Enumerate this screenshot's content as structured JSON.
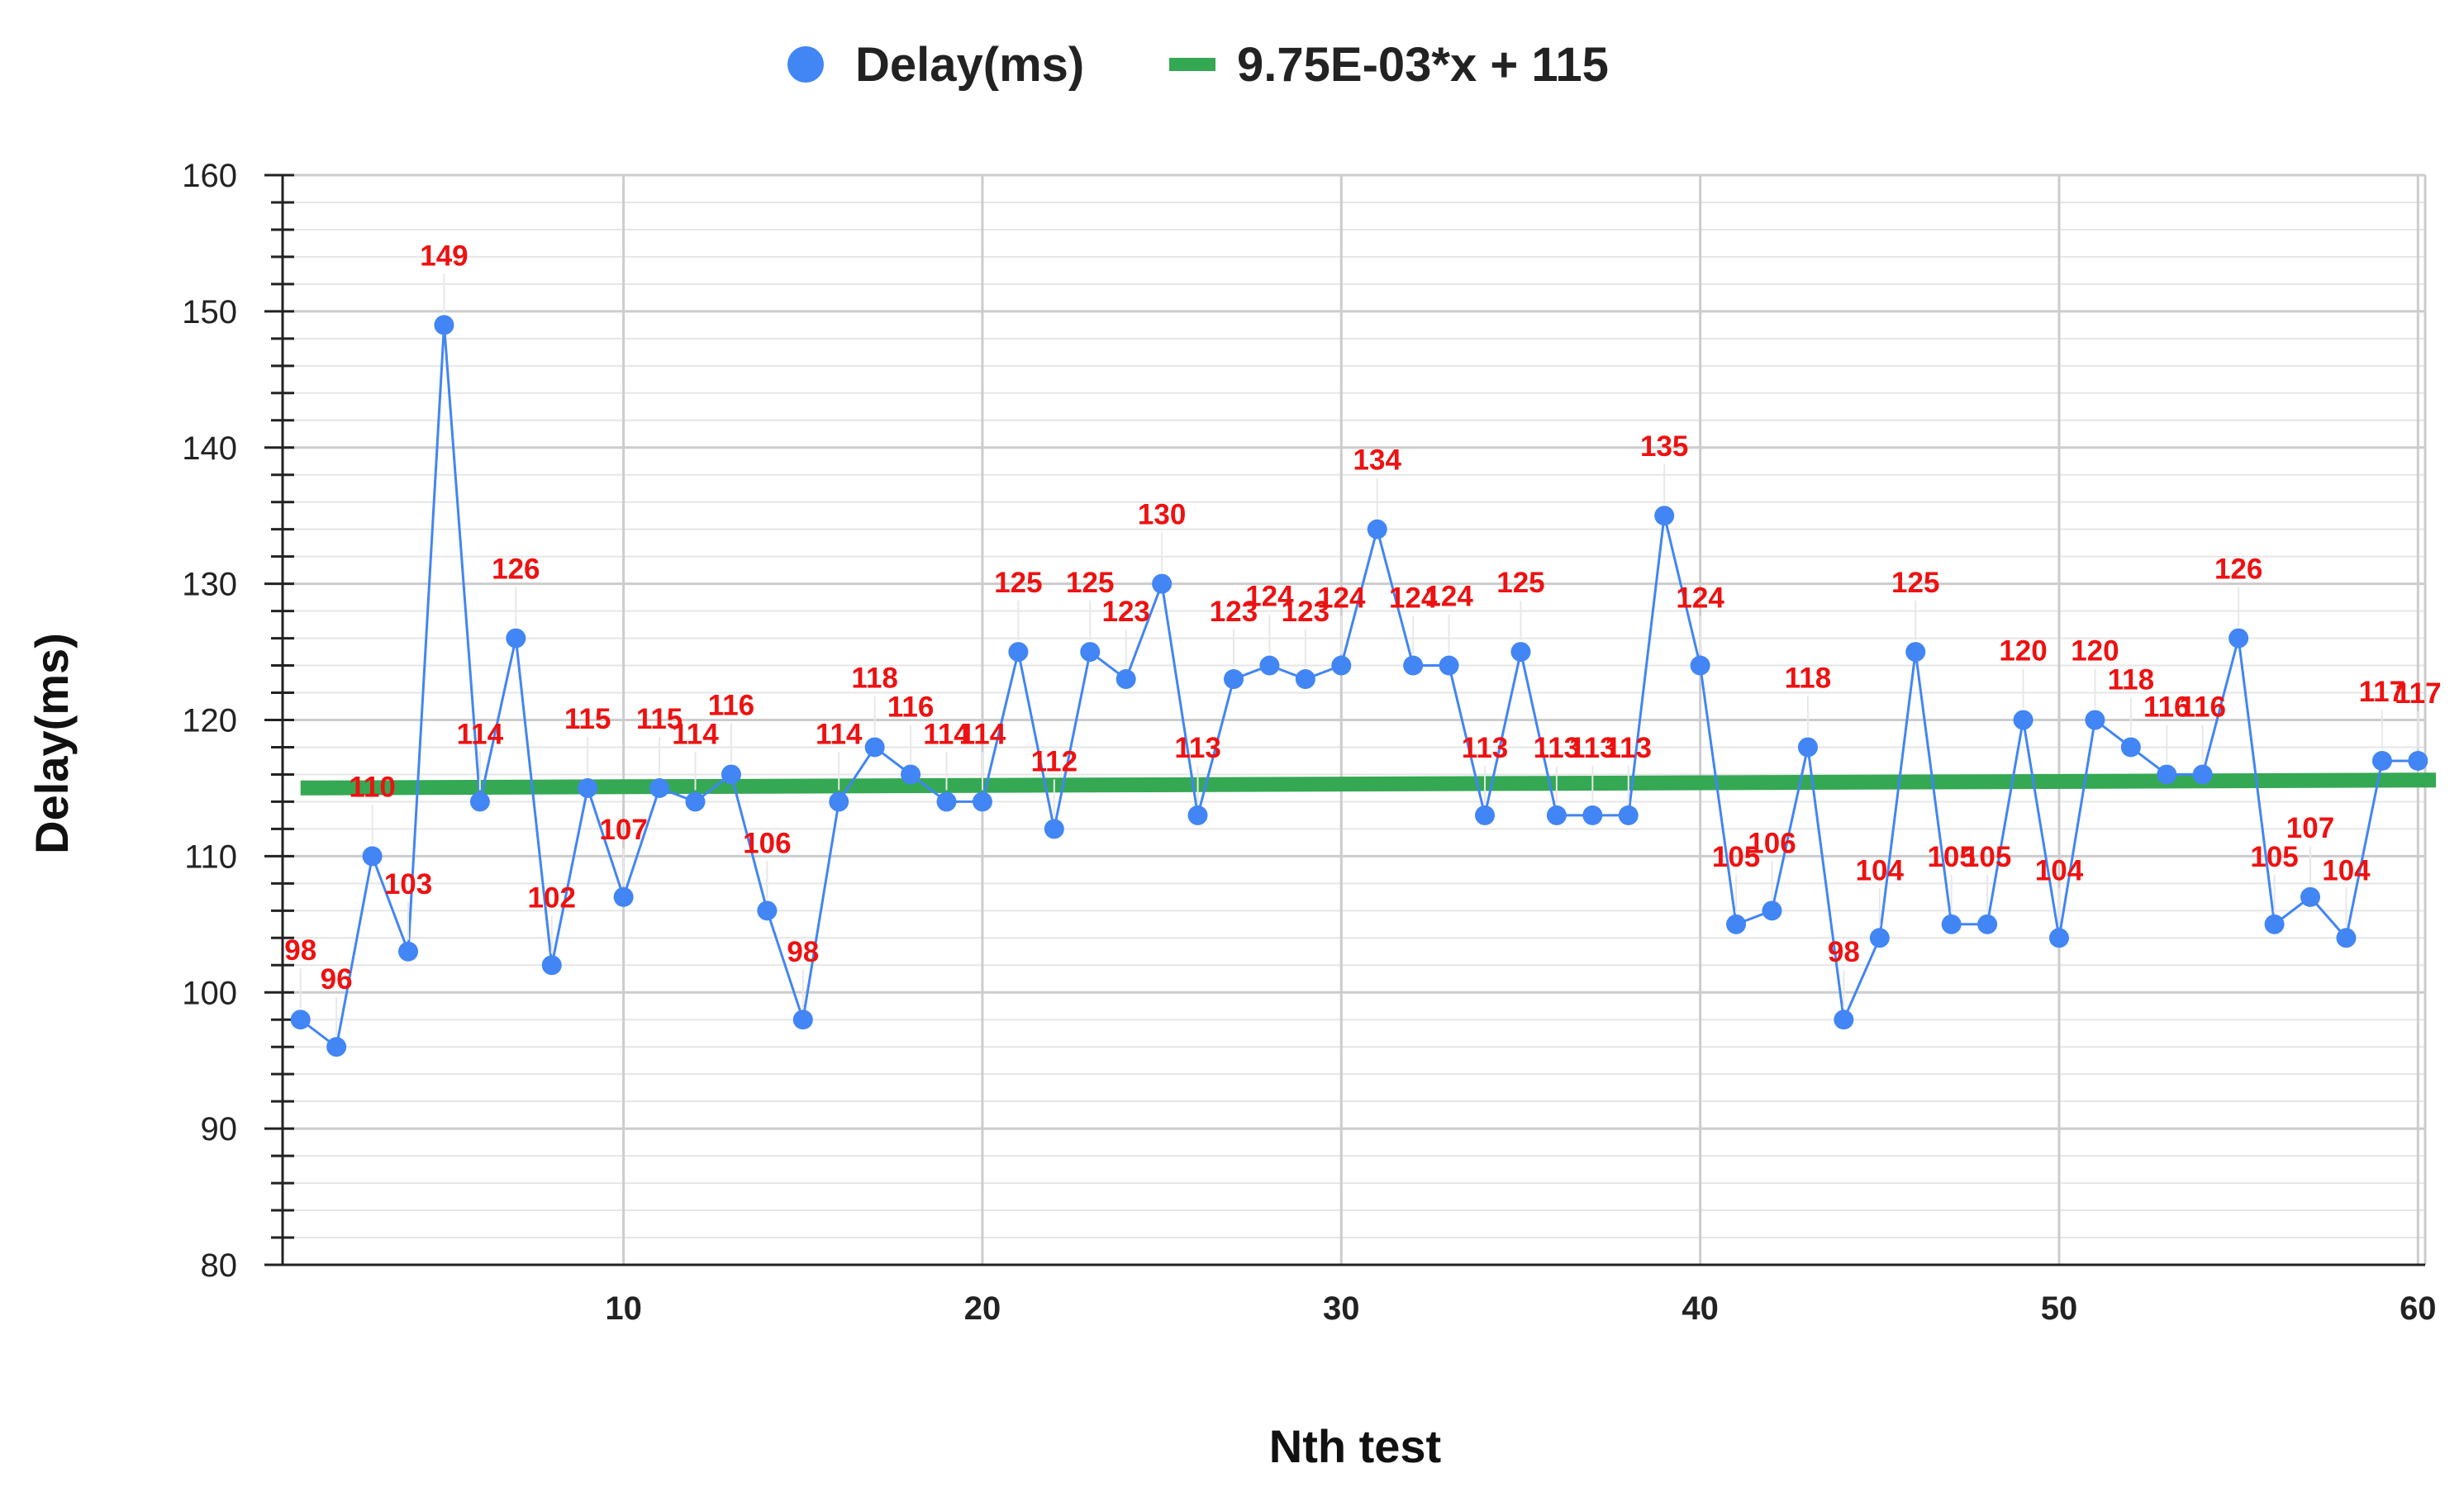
{
  "chart_data": {
    "type": "line",
    "title": "",
    "xlabel": "Nth test",
    "ylabel": "Delay(ms)",
    "xlim": [
      0.5,
      60.2
    ],
    "ylim": [
      80,
      160
    ],
    "x_ticks": [
      10,
      20,
      30,
      40,
      50,
      60
    ],
    "y_ticks": [
      80,
      90,
      100,
      110,
      120,
      130,
      140,
      150,
      160
    ],
    "grid": true,
    "legend_position": "top-center",
    "series": [
      {
        "name": "Delay(ms)",
        "color": "#4285f4",
        "label_color": "#ee1111",
        "x": [
          1,
          2,
          3,
          4,
          5,
          6,
          7,
          8,
          9,
          10,
          11,
          12,
          13,
          14,
          15,
          16,
          17,
          18,
          19,
          20,
          21,
          22,
          23,
          24,
          25,
          26,
          27,
          28,
          29,
          30,
          31,
          32,
          33,
          34,
          35,
          36,
          37,
          38,
          39,
          40,
          41,
          42,
          43,
          44,
          45,
          46,
          47,
          48,
          49,
          50,
          51,
          52,
          53,
          54,
          55,
          56,
          57,
          58,
          59,
          60
        ],
        "values": [
          98,
          96,
          110,
          103,
          149,
          114,
          126,
          102,
          115,
          107,
          115,
          114,
          116,
          106,
          98,
          114,
          118,
          116,
          114,
          114,
          125,
          112,
          125,
          123,
          130,
          113,
          123,
          124,
          123,
          124,
          134,
          124,
          124,
          113,
          125,
          113,
          113,
          113,
          135,
          124,
          105,
          106,
          118,
          98,
          104,
          125,
          105,
          105,
          120,
          104,
          120,
          118,
          116,
          116,
          126,
          105,
          107,
          104,
          117,
          117
        ]
      },
      {
        "name": "9.75E-03*x + 115",
        "type": "trendline",
        "color": "#34a853",
        "slope": 0.00975,
        "intercept": 115
      }
    ]
  }
}
